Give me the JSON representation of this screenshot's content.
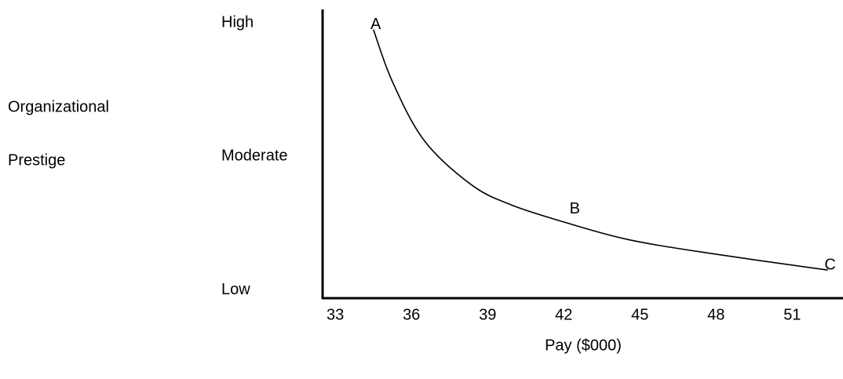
{
  "chart_data": {
    "type": "line",
    "x_label": "Pay ($000)",
    "y_label": [
      "Organizational",
      "Prestige"
    ],
    "x": [
      34.5,
      35.25,
      36.5,
      38.35,
      39.9,
      42,
      44.5,
      47.6,
      52.4
    ],
    "values": [
      1.95,
      1.56,
      1.12,
      0.79,
      0.64,
      0.51,
      0.38,
      0.28,
      0.15
    ],
    "color": "#000000",
    "xlim": [
      32.5,
      53
    ],
    "xticks": [
      33,
      36,
      39,
      42,
      45,
      48,
      51
    ],
    "ylim": [
      -0.06,
      2.1
    ],
    "yticks": [
      {
        "value": 0,
        "label": "Low"
      },
      {
        "value": 1,
        "label": "Moderate"
      },
      {
        "value": 2,
        "label": "High"
      }
    ],
    "grid": false,
    "annotations": [
      {
        "text": "A",
        "x": 34.5,
        "y": 1.95
      },
      {
        "text": "B",
        "x": 42,
        "y": 0.51
      },
      {
        "text": "C",
        "x": 52.4,
        "y": 0.15
      }
    ]
  }
}
